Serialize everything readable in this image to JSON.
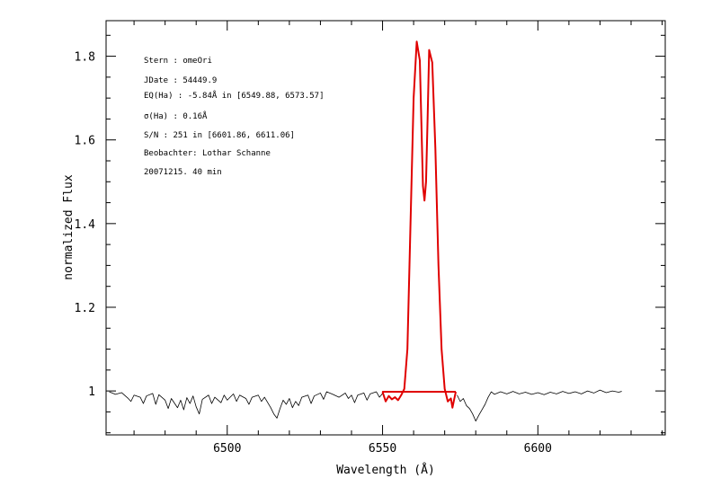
{
  "chart_data": {
    "type": "line",
    "title": "",
    "xlabel": "Wavelength (Å)",
    "ylabel": "normalized Flux",
    "xlim": [
      6461,
      6641
    ],
    "ylim": [
      0.895,
      1.885
    ],
    "x_ticks": [
      6500,
      6550,
      6600
    ],
    "x_tick_labels": [
      "6500",
      "6550",
      "6600"
    ],
    "y_ticks": [
      1.0,
      1.2,
      1.4,
      1.6,
      1.8
    ],
    "y_tick_labels": [
      "1",
      "1.2",
      "1.4",
      "1.6",
      "1.8"
    ],
    "x_minor_step": 10,
    "y_minor_step": 0.05,
    "grid": false,
    "annotations": [
      "Stern   : omeOri",
      "JDate   : 54449.9",
      "EQ(Ha) : -5.84Å in [6549.88, 6573.57]",
      "σ(Ha)   : 0.16Å",
      "S/N     : 251 in [6601.86, 6611.06]",
      "Beobachter: Lothar Schanne",
      "20071215. 40 min"
    ],
    "series": [
      {
        "color": "#000000",
        "points": [
          [
            6462,
            0.998
          ],
          [
            6464,
            0.992
          ],
          [
            6466,
            0.996
          ],
          [
            6468,
            0.983
          ],
          [
            6469,
            0.975
          ],
          [
            6470,
            0.99
          ],
          [
            6472,
            0.985
          ],
          [
            6473,
            0.97
          ],
          [
            6474,
            0.988
          ],
          [
            6476,
            0.994
          ],
          [
            6477,
            0.968
          ],
          [
            6478,
            0.991
          ],
          [
            6480,
            0.978
          ],
          [
            6481,
            0.958
          ],
          [
            6482,
            0.982
          ],
          [
            6484,
            0.96
          ],
          [
            6485,
            0.978
          ],
          [
            6486,
            0.955
          ],
          [
            6487,
            0.984
          ],
          [
            6488,
            0.97
          ],
          [
            6489,
            0.988
          ],
          [
            6490,
            0.962
          ],
          [
            6491,
            0.945
          ],
          [
            6492,
            0.98
          ],
          [
            6494,
            0.99
          ],
          [
            6495,
            0.97
          ],
          [
            6496,
            0.985
          ],
          [
            6498,
            0.972
          ],
          [
            6499,
            0.99
          ],
          [
            6500,
            0.978
          ],
          [
            6502,
            0.993
          ],
          [
            6503,
            0.975
          ],
          [
            6504,
            0.99
          ],
          [
            6506,
            0.982
          ],
          [
            6507,
            0.968
          ],
          [
            6508,
            0.985
          ],
          [
            6510,
            0.99
          ],
          [
            6511,
            0.975
          ],
          [
            6512,
            0.985
          ],
          [
            6514,
            0.96
          ],
          [
            6515,
            0.945
          ],
          [
            6516,
            0.935
          ],
          [
            6517,
            0.958
          ],
          [
            6518,
            0.978
          ],
          [
            6519,
            0.968
          ],
          [
            6520,
            0.982
          ],
          [
            6521,
            0.96
          ],
          [
            6522,
            0.975
          ],
          [
            6523,
            0.965
          ],
          [
            6524,
            0.985
          ],
          [
            6526,
            0.99
          ],
          [
            6527,
            0.97
          ],
          [
            6528,
            0.988
          ],
          [
            6530,
            0.995
          ],
          [
            6531,
            0.98
          ],
          [
            6532,
            0.998
          ],
          [
            6534,
            0.992
          ],
          [
            6536,
            0.985
          ],
          [
            6538,
            0.995
          ],
          [
            6539,
            0.982
          ],
          [
            6540,
            0.99
          ],
          [
            6541,
            0.972
          ],
          [
            6542,
            0.99
          ],
          [
            6544,
            0.995
          ],
          [
            6545,
            0.978
          ],
          [
            6546,
            0.993
          ],
          [
            6548,
            0.998
          ],
          [
            6549,
            0.985
          ],
          [
            6550,
            0.994
          ]
        ]
      },
      {
        "color": "#000000",
        "points": [
          [
            6574,
            0.99
          ],
          [
            6575,
            0.975
          ],
          [
            6576,
            0.982
          ],
          [
            6577,
            0.965
          ],
          [
            6578,
            0.958
          ],
          [
            6579,
            0.945
          ],
          [
            6580,
            0.928
          ],
          [
            6581,
            0.942
          ],
          [
            6582,
            0.955
          ],
          [
            6583,
            0.968
          ],
          [
            6584,
            0.985
          ],
          [
            6585,
            0.998
          ],
          [
            6586,
            0.992
          ],
          [
            6588,
            0.998
          ],
          [
            6590,
            0.993
          ],
          [
            6592,
            0.999
          ],
          [
            6594,
            0.993
          ],
          [
            6596,
            0.997
          ],
          [
            6598,
            0.992
          ],
          [
            6600,
            0.996
          ],
          [
            6602,
            0.991
          ],
          [
            6604,
            0.997
          ],
          [
            6606,
            0.993
          ],
          [
            6608,
            0.999
          ],
          [
            6610,
            0.994
          ],
          [
            6612,
            0.998
          ],
          [
            6614,
            0.993
          ],
          [
            6616,
            1.0
          ],
          [
            6618,
            0.995
          ],
          [
            6620,
            1.002
          ],
          [
            6622,
            0.996
          ],
          [
            6624,
            1.0
          ],
          [
            6626,
            0.997
          ],
          [
            6627,
            0.999
          ]
        ]
      },
      {
        "color": "#e00000",
        "points": [
          [
            6550,
            0.998
          ],
          [
            6551,
            0.975
          ],
          [
            6552,
            0.988
          ],
          [
            6553,
            0.98
          ],
          [
            6554,
            0.985
          ],
          [
            6555,
            0.978
          ],
          [
            6556,
            0.99
          ],
          [
            6557,
            1.005
          ],
          [
            6558,
            1.1
          ],
          [
            6559,
            1.4
          ],
          [
            6560,
            1.7
          ],
          [
            6561,
            1.835
          ],
          [
            6562,
            1.79
          ],
          [
            6563,
            1.49
          ],
          [
            6563.5,
            1.455
          ],
          [
            6564,
            1.5
          ],
          [
            6564.5,
            1.65
          ],
          [
            6565,
            1.815
          ],
          [
            6566,
            1.785
          ],
          [
            6567,
            1.58
          ],
          [
            6568,
            1.3
          ],
          [
            6569,
            1.1
          ],
          [
            6570,
            1.005
          ],
          [
            6571,
            0.975
          ],
          [
            6572,
            0.982
          ],
          [
            6572.5,
            0.96
          ],
          [
            6573,
            0.978
          ],
          [
            6573.57,
            0.998
          ]
        ]
      },
      {
        "color": "#e00000",
        "points": [
          [
            6549.88,
            0.998
          ],
          [
            6573.57,
            0.998
          ]
        ]
      }
    ]
  }
}
